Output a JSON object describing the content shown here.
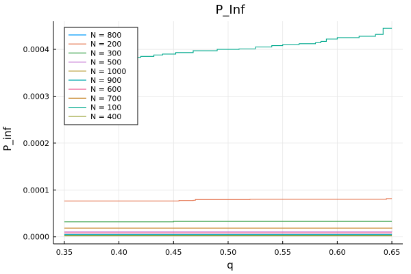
{
  "chart_data": {
    "type": "line",
    "title": "P_Inf",
    "xlabel": "q",
    "ylabel": "P_inf",
    "xlim": [
      0.34,
      0.66
    ],
    "ylim": [
      -1.5e-05,
      0.00046
    ],
    "xticks": [
      0.35,
      0.4,
      0.45,
      0.5,
      0.55,
      0.6,
      0.65
    ],
    "xtick_labels": [
      "0.35",
      "0.40",
      "0.45",
      "0.50",
      "0.55",
      "0.60",
      "0.65"
    ],
    "yticks": [
      0.0,
      0.0001,
      0.0002,
      0.0003,
      0.0004
    ],
    "ytick_labels": [
      "0.0000",
      "0.0001",
      "0.0002",
      "0.0003",
      "0.0004"
    ],
    "grid": true,
    "legend_position": "top-left",
    "series": [
      {
        "name": "N = 800",
        "color": "#009AFA",
        "x": [
          0.35,
          0.65
        ],
        "y": [
          5e-06,
          5e-06
        ]
      },
      {
        "name": "N = 200",
        "color": "#E36F47",
        "x": [
          0.35,
          0.452,
          0.455,
          0.468,
          0.47,
          0.52,
          0.645,
          0.65
        ],
        "y": [
          7.65e-05,
          7.65e-05,
          7.75e-05,
          7.8e-05,
          7.95e-05,
          8e-05,
          8.15e-05,
          8.15e-05
        ]
      },
      {
        "name": "N = 300",
        "color": "#3EA44E",
        "x": [
          0.35,
          0.45,
          0.65
        ],
        "y": [
          3.2e-05,
          3.3e-05,
          3.3e-05
        ]
      },
      {
        "name": "N = 500",
        "color": "#C271D2",
        "x": [
          0.35,
          0.65
        ],
        "y": [
          1.15e-05,
          1.2e-05
        ]
      },
      {
        "name": "N = 1000",
        "color": "#AC8E18",
        "x": [
          0.35,
          0.65
        ],
        "y": [
          4e-06,
          4e-06
        ]
      },
      {
        "name": "N = 900",
        "color": "#00A9AD",
        "x": [
          0.35,
          0.65
        ],
        "y": [
          4.5e-06,
          4.5e-06
        ]
      },
      {
        "name": "N = 600",
        "color": "#ED5E93",
        "x": [
          0.35,
          0.65
        ],
        "y": [
          8.5e-06,
          8.5e-06
        ]
      },
      {
        "name": "N = 700",
        "color": "#C68225",
        "x": [
          0.35,
          0.65
        ],
        "y": [
          1.85e-05,
          1.95e-05
        ]
      },
      {
        "name": "N = 100",
        "color": "#00A98D",
        "x": [
          0.35,
          0.36,
          0.37,
          0.385,
          0.4,
          0.41,
          0.42,
          0.432,
          0.44,
          0.452,
          0.468,
          0.49,
          0.51,
          0.525,
          0.54,
          0.55,
          0.565,
          0.58,
          0.585,
          0.59,
          0.6,
          0.62,
          0.635,
          0.642,
          0.65
        ],
        "y": [
          0.000366,
          0.000369,
          0.000373,
          0.000377,
          0.000381,
          0.000383,
          0.000385,
          0.000388,
          0.00039,
          0.000393,
          0.000397,
          0.0004,
          0.000401,
          0.000405,
          0.000408,
          0.00041,
          0.000412,
          0.000414,
          0.000417,
          0.000422,
          0.000425,
          0.000428,
          0.000432,
          0.000445,
          0.000445
        ]
      },
      {
        "name": "N = 400",
        "color": "#8E971E",
        "x": [
          0.35,
          0.65
        ],
        "y": [
          2.5e-06,
          2.5e-06
        ]
      }
    ]
  }
}
